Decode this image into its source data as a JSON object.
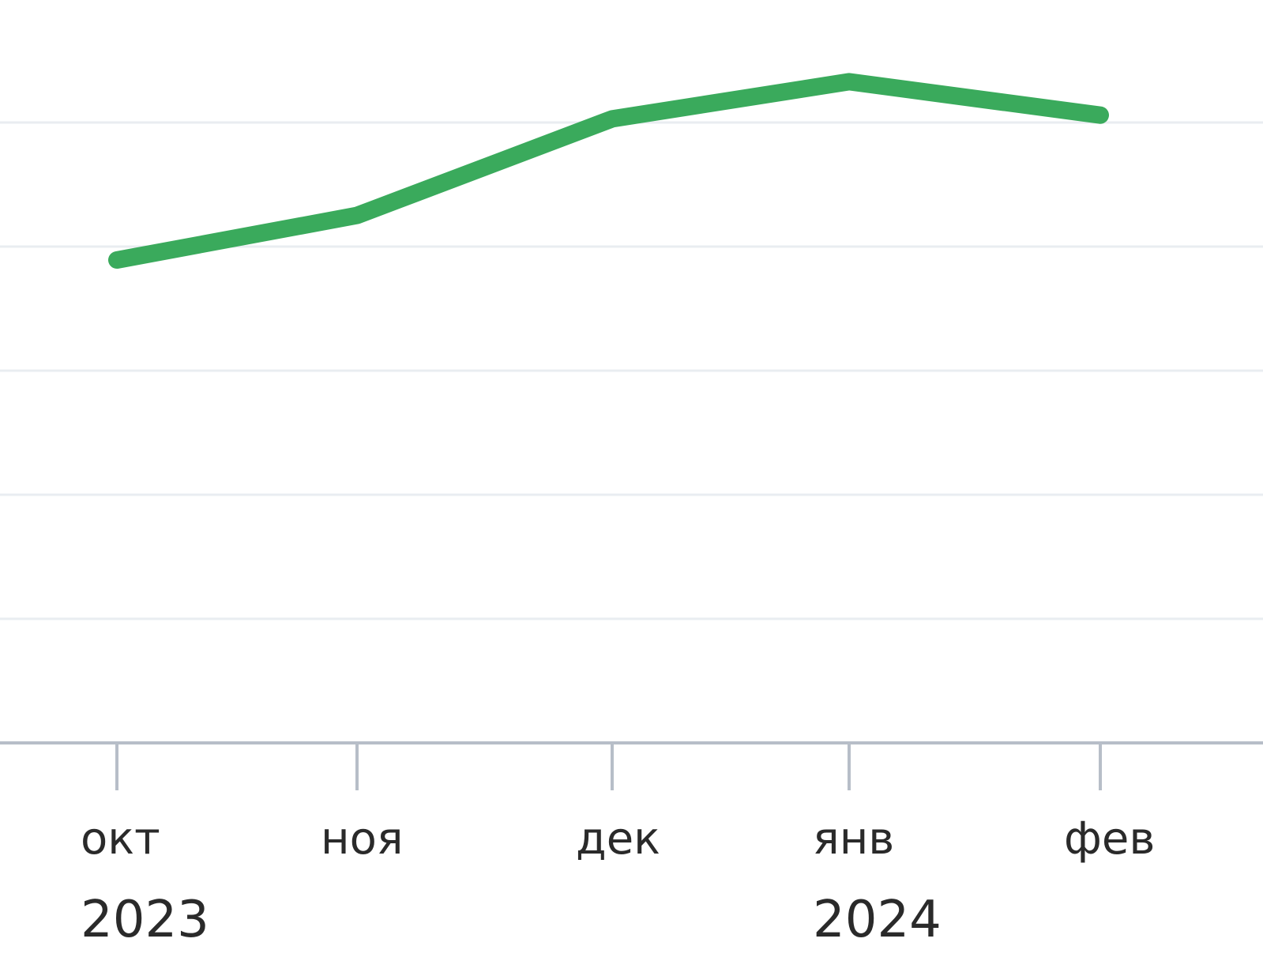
{
  "chart_data": {
    "type": "line",
    "categories": [
      "окт",
      "ноя",
      "дек",
      "янв",
      "фев"
    ],
    "year_labels": [
      {
        "category": "окт",
        "text": "2023"
      },
      {
        "category": "янв",
        "text": "2024"
      }
    ],
    "series": [
      {
        "values": [
          65,
          71,
          84,
          89,
          84.5
        ],
        "color": "#3aaa5c"
      }
    ],
    "ylim": [
      0,
      100
    ],
    "title": "",
    "xlabel": "",
    "ylabel": "",
    "grid": true,
    "axis_color": "#b7bec8",
    "grid_color": "#e9edf1"
  }
}
